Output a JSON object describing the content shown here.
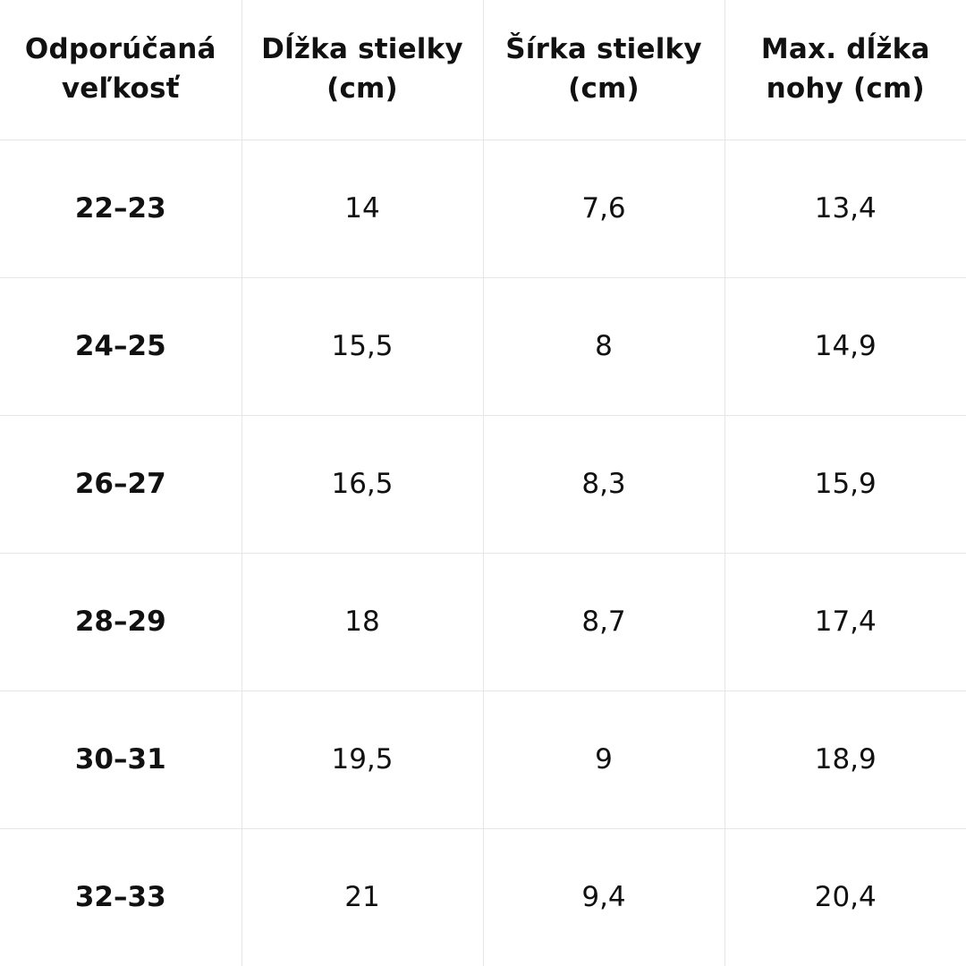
{
  "table": {
    "headers": [
      "Odporúčaná veľkosť",
      "Dĺžka stielky (cm)",
      "Šírka stielky (cm)",
      "Max. dĺžka nohy (cm)"
    ],
    "rows": [
      [
        "22–23",
        "14",
        "7,6",
        "13,4"
      ],
      [
        "24–25",
        "15,5",
        "8",
        "14,9"
      ],
      [
        "26–27",
        "16,5",
        "8,3",
        "15,9"
      ],
      [
        "28–29",
        "18",
        "8,7",
        "17,4"
      ],
      [
        "30–31",
        "19,5",
        "9",
        "18,9"
      ],
      [
        "32–33",
        "21",
        "9,4",
        "20,4"
      ]
    ]
  }
}
